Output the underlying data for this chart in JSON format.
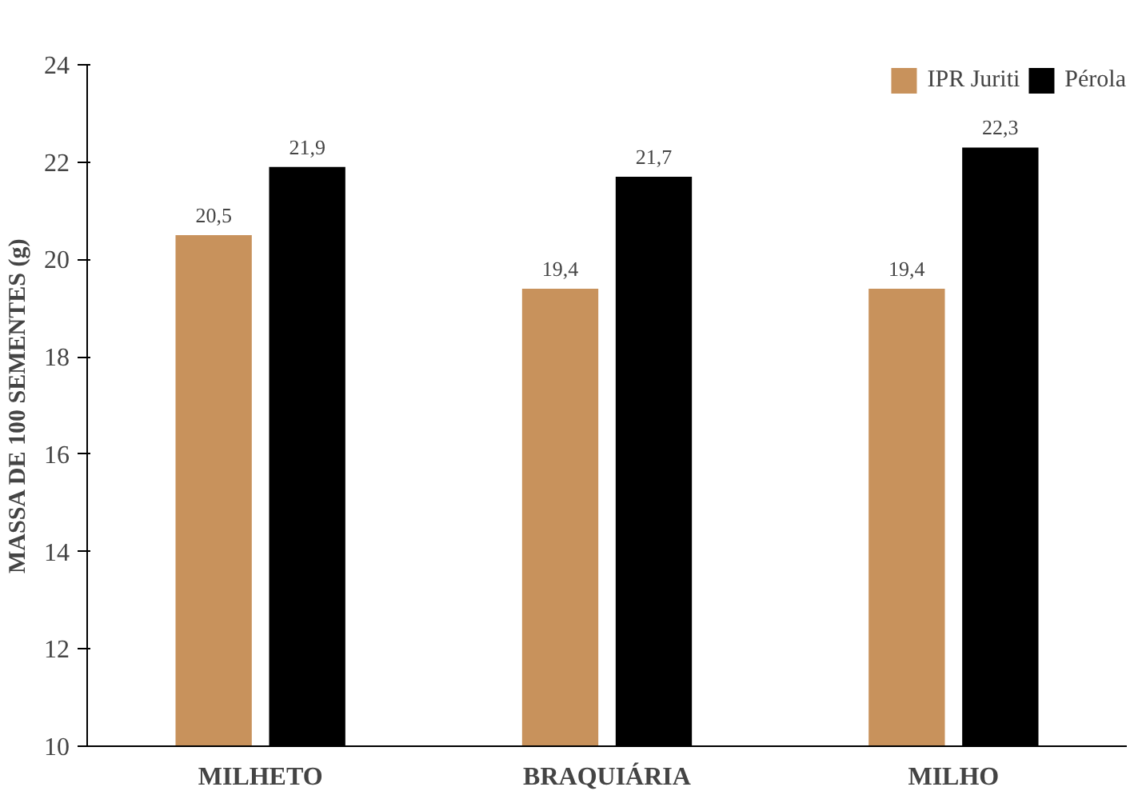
{
  "chart_data": {
    "type": "bar",
    "ylabel": "MASSA DE 100 SEMENTES (g)",
    "categories": [
      "MILHETO",
      "BRAQUIÁRIA",
      "MILHO"
    ],
    "series": [
      {
        "name": "IPR Juriti",
        "color": "#c8925c",
        "values": [
          20.5,
          19.4,
          19.4
        ],
        "value_labels": [
          "20,5",
          "19,4",
          "19,4"
        ]
      },
      {
        "name": "Pérola",
        "color": "#000000",
        "values": [
          21.9,
          21.7,
          22.3
        ],
        "value_labels": [
          "21,9",
          "21,7",
          "22,3"
        ]
      }
    ],
    "ylim": [
      10,
      24
    ],
    "yticks": [
      10,
      12,
      14,
      16,
      18,
      20,
      22,
      24
    ],
    "grid": false,
    "legend": "top right"
  }
}
